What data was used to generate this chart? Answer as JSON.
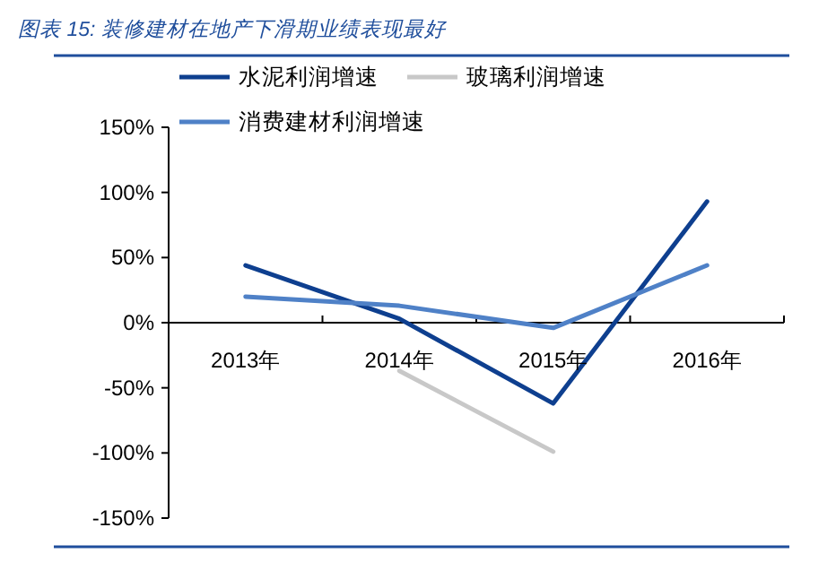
{
  "chart_data": {
    "type": "line",
    "title": "图表 15: 装修建材在地产下滑期业绩表现最好",
    "categories": [
      "2013年",
      "2014年",
      "2015年",
      "2016年"
    ],
    "series": [
      {
        "name": "水泥利润增速",
        "color": "#0e3f8f",
        "values": [
          44,
          3,
          -62,
          93
        ]
      },
      {
        "name": "玻璃利润增速",
        "color": "#c8c8c8",
        "values": [
          null,
          -37,
          -99,
          null
        ]
      },
      {
        "name": "消费建材利润增速",
        "color": "#4f81c7",
        "values": [
          20,
          13,
          -4,
          44
        ]
      }
    ],
    "ylim": [
      -150,
      150
    ],
    "yticks": [
      {
        "value": -150,
        "label": "-150%"
      },
      {
        "value": -100,
        "label": "-100%"
      },
      {
        "value": -50,
        "label": "-50%"
      },
      {
        "value": 0,
        "label": "0%"
      },
      {
        "value": 50,
        "label": "50%"
      },
      {
        "value": 100,
        "label": "100%"
      },
      {
        "value": 150,
        "label": "150%"
      }
    ],
    "grid": false,
    "legend": "top",
    "marker": "none",
    "line_style": "solid"
  }
}
